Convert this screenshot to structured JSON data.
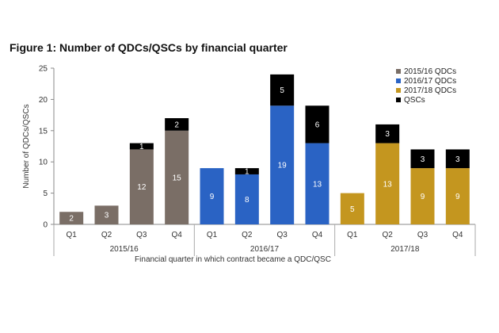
{
  "title": "Figure 1: Number of QDCs/QSCs by financial quarter",
  "chart_data": {
    "type": "bar",
    "stacked": true,
    "title": "Figure 1: Number of QDCs/QSCs by financial quarter",
    "ylabel": "Number of QDCs/QSCs",
    "xlabel": "Financial quarter in which contract became a QDC/QSC",
    "ylim": [
      0,
      25
    ],
    "yticks": [
      0,
      5,
      10,
      15,
      20,
      25
    ],
    "grid": false,
    "legend_position": "top-right",
    "categories": [
      "Q1",
      "Q2",
      "Q3",
      "Q4",
      "Q1",
      "Q2",
      "Q3",
      "Q4",
      "Q1",
      "Q2",
      "Q3",
      "Q4"
    ],
    "groups": [
      {
        "label": "2015/16",
        "span": [
          0,
          3
        ]
      },
      {
        "label": "2016/17",
        "span": [
          4,
          7
        ]
      },
      {
        "label": "2017/18",
        "span": [
          8,
          11
        ]
      }
    ],
    "series": [
      {
        "name": "2015/16 QDCs",
        "color": "#7a6e66",
        "values": [
          2,
          3,
          12,
          15,
          0,
          0,
          0,
          0,
          0,
          0,
          0,
          0
        ],
        "labels": [
          "2",
          "3",
          "12",
          "15",
          "",
          "",
          "",
          "",
          "",
          "",
          "",
          ""
        ]
      },
      {
        "name": "2016/17 QDCs",
        "color": "#2a63c4",
        "values": [
          0,
          0,
          0,
          0,
          9,
          8,
          19,
          13,
          0,
          0,
          0,
          0
        ],
        "labels": [
          "",
          "",
          "",
          "",
          "9",
          "8",
          "19",
          "13",
          "",
          "",
          "",
          ""
        ]
      },
      {
        "name": "2017/18 QDCs",
        "color": "#c4961f",
        "values": [
          0,
          0,
          0,
          0,
          0,
          0,
          0,
          0,
          5,
          13,
          9,
          9
        ],
        "labels": [
          "",
          "",
          "",
          "",
          "",
          "",
          "",
          "",
          "5",
          "13",
          "9",
          "9"
        ]
      },
      {
        "name": "QSCs",
        "color": "#000000",
        "values": [
          0,
          0,
          1,
          2,
          0,
          1,
          5,
          6,
          0,
          3,
          3,
          3
        ],
        "labels": [
          "",
          "",
          "1",
          "2",
          "",
          "1",
          "5",
          "6",
          "",
          "3",
          "3",
          "3"
        ]
      }
    ]
  }
}
